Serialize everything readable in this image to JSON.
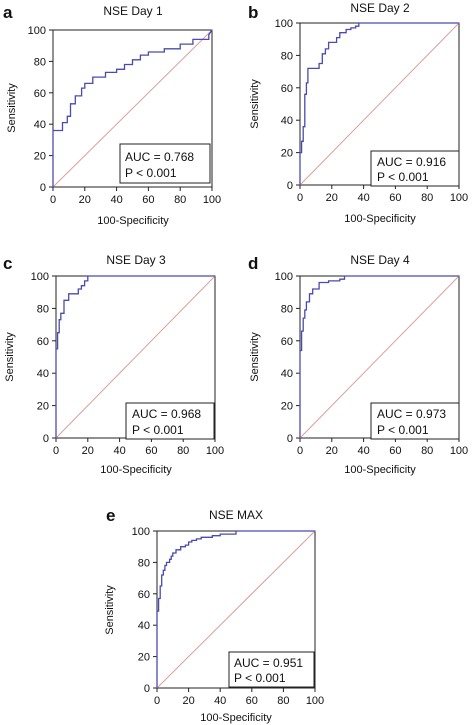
{
  "colors": {
    "roc_curve": "#4a4ab0",
    "reference_line": "#d9a0a0",
    "axes": "#222222",
    "background": "#ffffff"
  },
  "chart_data": [
    {
      "panel": "a",
      "type": "line",
      "title": "NSE Day 1",
      "xlabel": "100-Specificity",
      "ylabel": "Sensitivity",
      "xlim": [
        0,
        100
      ],
      "ylim": [
        0,
        100
      ],
      "xticks": [
        0,
        20,
        40,
        60,
        80,
        100
      ],
      "yticks": [
        0,
        20,
        40,
        60,
        80,
        100
      ],
      "auc": "AUC = 0.768",
      "p_value": "P < 0.001",
      "series": [
        {
          "x": [
            0,
            0,
            6,
            6,
            9,
            9,
            11,
            11,
            14,
            14,
            18,
            18,
            20,
            20,
            25,
            25,
            33,
            33,
            40,
            40,
            45,
            45,
            50,
            50,
            55,
            55,
            60,
            60,
            70,
            70,
            80,
            80,
            88,
            88,
            98,
            98,
            100
          ],
          "y": [
            0,
            36,
            36,
            41,
            41,
            45,
            45,
            53,
            53,
            58,
            58,
            63,
            63,
            66,
            66,
            70,
            70,
            73,
            73,
            75,
            75,
            78,
            78,
            81,
            81,
            84,
            84,
            86,
            86,
            88,
            88,
            91,
            91,
            94,
            94,
            97,
            100
          ]
        }
      ]
    },
    {
      "panel": "b",
      "type": "line",
      "title": "NSE Day 2",
      "xlabel": "100-Specificity",
      "ylabel": "Sensitivity",
      "xlim": [
        0,
        100
      ],
      "ylim": [
        0,
        100
      ],
      "xticks": [
        0,
        20,
        40,
        60,
        80,
        100
      ],
      "yticks": [
        0,
        20,
        40,
        60,
        80,
        100
      ],
      "auc": "AUC = 0.916",
      "p_value": "P < 0.001",
      "series": [
        {
          "x": [
            0,
            0,
            1,
            1,
            2,
            2,
            3,
            3,
            4,
            4,
            5,
            5,
            12,
            12,
            14,
            14,
            16,
            16,
            18,
            18,
            23,
            23,
            25,
            25,
            29,
            29,
            32,
            32,
            35,
            35,
            37,
            37,
            100
          ],
          "y": [
            0,
            20,
            20,
            27,
            27,
            36,
            36,
            56,
            56,
            63,
            63,
            72,
            72,
            75,
            75,
            81,
            81,
            84,
            84,
            88,
            88,
            91,
            91,
            94,
            94,
            96,
            96,
            97,
            97,
            98,
            98,
            100,
            100
          ]
        }
      ]
    },
    {
      "panel": "c",
      "type": "line",
      "title": "NSE Day 3",
      "xlabel": "100-Specificity",
      "ylabel": "Sensitivity",
      "xlim": [
        0,
        100
      ],
      "ylim": [
        0,
        100
      ],
      "xticks": [
        0,
        20,
        40,
        60,
        80,
        100
      ],
      "yticks": [
        0,
        20,
        40,
        60,
        80,
        100
      ],
      "auc": "AUC = 0.968",
      "p_value": "P < 0.001",
      "series": [
        {
          "x": [
            0,
            0,
            1,
            1,
            2,
            2,
            3,
            3,
            5,
            5,
            8,
            8,
            14,
            14,
            16,
            16,
            18,
            18,
            20,
            20,
            100
          ],
          "y": [
            0,
            55,
            55,
            65,
            65,
            73,
            73,
            77,
            77,
            85,
            85,
            89,
            89,
            92,
            92,
            94,
            94,
            97,
            97,
            100,
            100
          ]
        }
      ]
    },
    {
      "panel": "d",
      "type": "line",
      "title": "NSE Day 4",
      "xlabel": "100-Specificity",
      "ylabel": "Sensitivity",
      "xlim": [
        0,
        100
      ],
      "ylim": [
        0,
        100
      ],
      "xticks": [
        0,
        20,
        40,
        60,
        80,
        100
      ],
      "yticks": [
        0,
        20,
        40,
        60,
        80,
        100
      ],
      "auc": "AUC = 0.973",
      "p_value": "P < 0.001",
      "series": [
        {
          "x": [
            0,
            0,
            1,
            1,
            2,
            2,
            3,
            3,
            4,
            4,
            6,
            6,
            8,
            8,
            12,
            12,
            18,
            18,
            25,
            25,
            28,
            28,
            100
          ],
          "y": [
            0,
            54,
            54,
            66,
            66,
            74,
            74,
            79,
            79,
            84,
            84,
            89,
            89,
            92,
            92,
            96,
            96,
            97,
            97,
            98,
            98,
            100,
            100
          ]
        }
      ]
    },
    {
      "panel": "e",
      "type": "line",
      "title": "NSE MAX",
      "xlabel": "100-Specificity",
      "ylabel": "Sensitivity",
      "xlim": [
        0,
        100
      ],
      "ylim": [
        0,
        100
      ],
      "xticks": [
        0,
        20,
        40,
        60,
        80,
        100
      ],
      "yticks": [
        0,
        20,
        40,
        60,
        80,
        100
      ],
      "auc": "AUC = 0.951",
      "p_value": "P < 0.001",
      "series": [
        {
          "x": [
            0,
            0,
            1,
            1,
            2,
            2,
            3,
            3,
            4,
            4,
            5,
            5,
            6,
            6,
            8,
            8,
            9,
            9,
            10,
            10,
            12,
            12,
            15,
            15,
            18,
            18,
            20,
            20,
            22,
            22,
            25,
            25,
            28,
            28,
            35,
            35,
            40,
            40,
            50,
            50,
            100
          ],
          "y": [
            0,
            49,
            49,
            57,
            57,
            65,
            65,
            72,
            72,
            75,
            75,
            78,
            78,
            80,
            80,
            82,
            82,
            84,
            84,
            86,
            86,
            88,
            88,
            90,
            90,
            91,
            91,
            93,
            93,
            94,
            94,
            95,
            95,
            96,
            96,
            97,
            97,
            98,
            98,
            100,
            100
          ]
        }
      ]
    }
  ]
}
